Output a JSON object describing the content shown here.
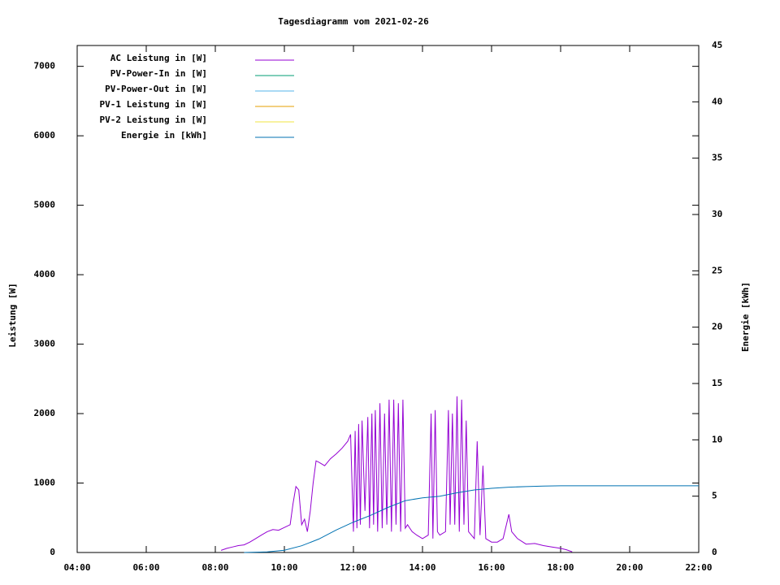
{
  "chart_data": {
    "type": "line",
    "title": "Tagesdiagramm vom 2021-02-26",
    "ylabel": "Leistung [W]",
    "y2label": "Energie [kWh]",
    "xlim": [
      "04:00",
      "22:00"
    ],
    "xticks": [
      "04:00",
      "06:00",
      "08:00",
      "10:00",
      "12:00",
      "14:00",
      "16:00",
      "18:00",
      "20:00",
      "22:00"
    ],
    "ylim": [
      0,
      7300
    ],
    "yticks": [
      0,
      1000,
      2000,
      3000,
      4000,
      5000,
      6000,
      7000
    ],
    "y2lim": [
      0,
      45
    ],
    "y2ticks": [
      0,
      5,
      10,
      15,
      20,
      25,
      30,
      35,
      40,
      45
    ],
    "legend": "top-left",
    "series": [
      {
        "name": "AC Leistung in [W]",
        "color": "#9400d3",
        "x": [
          "08:10",
          "08:20",
          "08:30",
          "08:40",
          "08:50",
          "09:00",
          "09:10",
          "09:20",
          "09:30",
          "09:40",
          "09:50",
          "10:00",
          "10:10",
          "10:15",
          "10:20",
          "10:25",
          "10:30",
          "10:35",
          "10:40",
          "10:45",
          "10:50",
          "10:55",
          "11:00",
          "11:10",
          "11:20",
          "11:30",
          "11:40",
          "11:50",
          "11:55",
          "12:00",
          "12:03",
          "12:06",
          "12:09",
          "12:12",
          "12:15",
          "12:20",
          "12:25",
          "12:28",
          "12:32",
          "12:35",
          "12:38",
          "12:42",
          "12:46",
          "12:50",
          "12:54",
          "12:58",
          "13:02",
          "13:06",
          "13:10",
          "13:14",
          "13:18",
          "13:22",
          "13:26",
          "13:30",
          "13:34",
          "13:38",
          "13:42",
          "13:50",
          "14:00",
          "14:10",
          "14:15",
          "14:18",
          "14:22",
          "14:26",
          "14:30",
          "14:40",
          "14:45",
          "14:48",
          "14:52",
          "14:56",
          "15:00",
          "15:04",
          "15:08",
          "15:12",
          "15:16",
          "15:20",
          "15:30",
          "15:35",
          "15:40",
          "15:45",
          "15:50",
          "16:00",
          "16:10",
          "16:20",
          "16:30",
          "16:35",
          "16:45",
          "17:00",
          "17:15",
          "17:30",
          "17:45",
          "18:00",
          "18:10",
          "18:20"
        ],
        "values": [
          30,
          60,
          80,
          100,
          110,
          150,
          200,
          250,
          300,
          330,
          320,
          360,
          400,
          700,
          950,
          900,
          400,
          480,
          300,
          600,
          1000,
          1320,
          1300,
          1250,
          1350,
          1420,
          1500,
          1600,
          1700,
          300,
          1750,
          350,
          1850,
          400,
          1900,
          600,
          1950,
          350,
          2000,
          400,
          2050,
          300,
          2150,
          350,
          2000,
          400,
          2200,
          300,
          2200,
          400,
          2150,
          300,
          2200,
          350,
          400,
          350,
          300,
          250,
          200,
          250,
          2000,
          200,
          2050,
          300,
          250,
          300,
          2050,
          400,
          2000,
          400,
          2250,
          300,
          2200,
          400,
          1900,
          300,
          200,
          1600,
          250,
          1250,
          200,
          150,
          150,
          200,
          550,
          300,
          200,
          120,
          130,
          100,
          80,
          60,
          40,
          10
        ]
      },
      {
        "name": "PV-Power-In in [W]",
        "color": "#009e73",
        "x": [],
        "values": []
      },
      {
        "name": "PV-Power-Out in [W]",
        "color": "#56b4e9",
        "x": [],
        "values": []
      },
      {
        "name": "PV-1 Leistung in [W]",
        "color": "#e69f00",
        "x": [],
        "values": []
      },
      {
        "name": "PV-2 Leistung in [W]",
        "color": "#f0e442",
        "x": [],
        "values": []
      },
      {
        "name": "Energie in [kWh]",
        "color": "#0072b2",
        "axis": "y2",
        "x": [
          "08:50",
          "09:30",
          "10:00",
          "10:30",
          "11:00",
          "11:30",
          "12:00",
          "12:30",
          "13:00",
          "13:30",
          "14:00",
          "14:30",
          "15:00",
          "15:30",
          "16:00",
          "16:30",
          "17:00",
          "17:30",
          "18:00",
          "22:00"
        ],
        "values": [
          0,
          0.05,
          0.2,
          0.6,
          1.2,
          2.0,
          2.7,
          3.3,
          4.0,
          4.6,
          4.85,
          5.0,
          5.3,
          5.55,
          5.7,
          5.8,
          5.85,
          5.9,
          5.92,
          5.92
        ]
      }
    ]
  }
}
